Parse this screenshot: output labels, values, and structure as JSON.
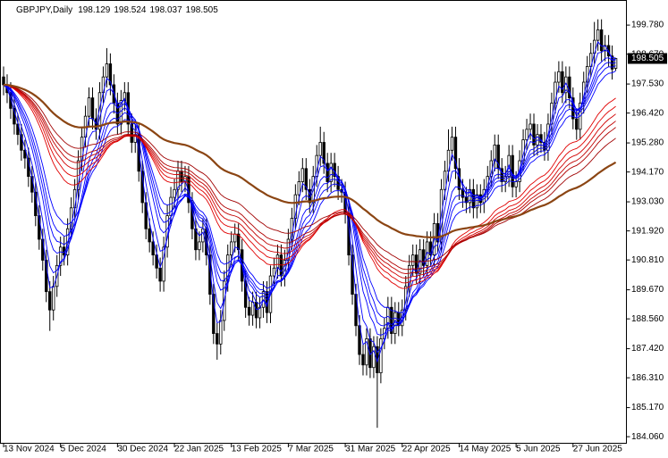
{
  "chart_data": {
    "type": "candlestick",
    "title": "GBPJPY,Daily",
    "categories": [
      "13 Nov 2024",
      null,
      null,
      null,
      null,
      null,
      null,
      null,
      null,
      null,
      null,
      null,
      null,
      null,
      null,
      null,
      "5 Dec 2024",
      null,
      null,
      null,
      null,
      null,
      null,
      null,
      null,
      null,
      null,
      null,
      null,
      null,
      null,
      null,
      "30 Dec 2024",
      null,
      null,
      null,
      null,
      null,
      null,
      null,
      null,
      null,
      null,
      null,
      null,
      null,
      null,
      null,
      "22 Jan 2025",
      null,
      null,
      null,
      null,
      null,
      null,
      null,
      null,
      null,
      null,
      null,
      null,
      null,
      null,
      null,
      "13 Feb 2025",
      null,
      null,
      null,
      null,
      null,
      null,
      null,
      null,
      null,
      null,
      null,
      null,
      null,
      null,
      null,
      "7 Mar 2025",
      null,
      null,
      null,
      null,
      null,
      null,
      null,
      null,
      null,
      null,
      null,
      null,
      null,
      null,
      null,
      "31 Mar 2025",
      null,
      null,
      null,
      null,
      null,
      null,
      null,
      null,
      null,
      null,
      null,
      null,
      null,
      null,
      null,
      "22 Apr 2025",
      null,
      null,
      null,
      null,
      null,
      null,
      null,
      null,
      null,
      null,
      null,
      null,
      null,
      null,
      null,
      "14 May 2025",
      null,
      null,
      null,
      null,
      null,
      null,
      null,
      null,
      null,
      null,
      null,
      null,
      null,
      null,
      null,
      "5 Jun 2025",
      null,
      null,
      null,
      null,
      null,
      null,
      null,
      null,
      null,
      null,
      null,
      null,
      null,
      null,
      null,
      "27 Jun 2025",
      null,
      null,
      null,
      null,
      null,
      null,
      null,
      null,
      null,
      null,
      null,
      null
    ],
    "open": [
      197.8,
      197.5,
      197.2,
      196.6,
      196.0,
      195.6,
      195.0,
      194.7,
      194.0,
      193.4,
      192.5,
      191.6,
      190.8,
      189.6,
      188.9,
      189.8,
      190.6,
      191.3,
      191.0,
      192.0,
      192.8,
      193.5,
      194.6,
      195.5,
      196.3,
      197.0,
      196.2,
      195.8,
      197.2,
      197.8,
      198.3,
      197.5,
      196.8,
      196.0,
      196.9,
      197.2,
      196.0,
      195.3,
      195.6,
      194.2,
      193.0,
      192.0,
      191.5,
      191.0,
      190.5,
      190.0,
      191.3,
      192.5,
      193.2,
      193.5,
      194.2,
      193.8,
      194.0,
      193.0,
      192.0,
      191.2,
      191.5,
      192.0,
      191.0,
      189.5,
      188.0,
      187.6,
      188.5,
      190.0,
      191.0,
      191.5,
      191.8,
      191.2,
      190.0,
      189.0,
      188.7,
      189.2,
      188.6,
      189.0,
      189.6,
      188.8,
      190.2,
      190.5,
      191.0,
      190.2,
      190.8,
      191.6,
      192.4,
      193.3,
      193.8,
      194.3,
      193.5,
      193.0,
      194.0,
      194.8,
      195.3,
      194.5,
      193.8,
      194.5,
      194.0,
      193.5,
      193.4,
      192.6,
      191.0,
      189.5,
      188.3,
      187.2,
      186.8,
      187.8,
      186.7,
      187.5,
      186.5,
      187.8,
      188.2,
      189.0,
      188.0,
      188.8,
      188.3,
      188.9,
      189.8,
      190.6,
      191.0,
      190.3,
      191.2,
      190.6,
      191.5,
      191.0,
      192.2,
      191.5,
      193.5,
      194.2,
      195.0,
      195.5,
      194.3,
      193.5,
      193.2,
      193.0,
      193.5,
      192.8,
      193.3,
      193.0,
      193.5,
      194.0,
      194.6,
      195.2,
      194.3,
      193.8,
      194.0,
      194.8,
      193.6,
      193.8,
      194.6,
      195.4,
      195.8,
      196.0,
      195.2,
      195.6,
      195.3,
      195.0,
      196.0,
      196.8,
      197.6,
      198.0,
      197.2,
      197.8,
      197.0,
      196.2,
      195.8,
      196.8,
      197.6,
      198.2,
      198.7,
      199.2,
      199.6,
      198.8,
      199.0,
      198.6,
      198.129
    ],
    "high": [
      198.2,
      197.9,
      197.6,
      197.0,
      196.4,
      196.0,
      195.4,
      195.1,
      194.4,
      193.8,
      192.9,
      192.0,
      191.2,
      190.0,
      190.2,
      191.0,
      191.7,
      191.7,
      192.4,
      193.2,
      193.9,
      195.0,
      195.9,
      196.7,
      197.4,
      197.4,
      196.6,
      197.6,
      198.2,
      198.9,
      198.7,
      197.9,
      197.2,
      197.3,
      197.6,
      197.6,
      196.4,
      196.0,
      196.0,
      194.6,
      193.4,
      192.4,
      191.9,
      191.4,
      190.9,
      191.7,
      192.9,
      193.6,
      193.9,
      194.6,
      194.6,
      194.4,
      194.4,
      193.4,
      192.4,
      191.9,
      192.4,
      192.4,
      191.4,
      189.9,
      188.4,
      188.9,
      190.4,
      191.4,
      191.9,
      192.2,
      192.2,
      191.6,
      190.4,
      189.4,
      189.6,
      189.6,
      189.4,
      190.0,
      190.0,
      190.6,
      190.9,
      191.4,
      191.4,
      191.2,
      192.0,
      192.8,
      193.7,
      194.2,
      194.7,
      194.7,
      193.9,
      194.4,
      195.2,
      195.9,
      195.7,
      194.9,
      194.9,
      194.9,
      194.4,
      193.9,
      193.8,
      193.0,
      191.4,
      189.9,
      188.7,
      187.6,
      188.2,
      188.2,
      187.9,
      187.9,
      188.2,
      188.6,
      189.4,
      189.4,
      189.2,
      189.2,
      189.3,
      190.2,
      191.0,
      191.4,
      191.4,
      191.6,
      191.6,
      191.9,
      191.9,
      192.6,
      192.6,
      193.9,
      194.6,
      195.8,
      195.9,
      195.9,
      194.7,
      193.9,
      193.6,
      193.9,
      193.9,
      193.7,
      193.7,
      193.9,
      194.4,
      195.0,
      195.6,
      195.6,
      194.7,
      194.4,
      195.2,
      195.2,
      194.2,
      195.0,
      195.8,
      196.2,
      196.4,
      196.4,
      196.0,
      196.0,
      195.7,
      196.4,
      197.2,
      198.0,
      198.4,
      198.4,
      198.2,
      198.2,
      197.4,
      196.6,
      197.2,
      198.0,
      198.6,
      199.1,
      199.9,
      200.0,
      200.0,
      199.4,
      199.4,
      199.0,
      198.524
    ],
    "low": [
      197.1,
      196.8,
      196.2,
      195.6,
      195.2,
      194.6,
      194.3,
      193.6,
      193.0,
      192.1,
      191.2,
      190.4,
      189.2,
      188.1,
      188.5,
      189.4,
      190.2,
      190.6,
      190.6,
      191.6,
      192.4,
      193.1,
      194.2,
      195.1,
      195.9,
      195.8,
      195.4,
      195.4,
      196.8,
      197.4,
      197.1,
      196.4,
      195.6,
      195.6,
      196.5,
      195.6,
      194.9,
      194.9,
      193.8,
      192.6,
      191.6,
      191.1,
      190.6,
      190.1,
      189.6,
      189.6,
      190.9,
      192.1,
      192.8,
      193.1,
      193.4,
      193.4,
      192.6,
      191.6,
      190.8,
      190.8,
      191.1,
      190.6,
      189.1,
      187.6,
      187.0,
      187.2,
      188.1,
      189.6,
      190.6,
      191.1,
      190.8,
      189.6,
      188.6,
      188.3,
      188.3,
      188.2,
      188.2,
      188.6,
      188.4,
      188.4,
      189.8,
      190.1,
      189.8,
      189.8,
      190.4,
      191.2,
      192.0,
      192.9,
      193.4,
      193.1,
      192.6,
      192.6,
      193.6,
      194.4,
      194.1,
      193.4,
      193.4,
      193.6,
      193.1,
      193.0,
      192.2,
      190.6,
      189.1,
      187.9,
      186.8,
      186.4,
      186.4,
      186.3,
      186.3,
      184.4,
      186.1,
      187.4,
      187.8,
      187.6,
      187.6,
      187.9,
      187.9,
      188.5,
      189.4,
      190.2,
      189.9,
      189.9,
      190.2,
      190.2,
      190.6,
      190.6,
      191.1,
      191.1,
      193.1,
      193.8,
      194.6,
      193.9,
      193.1,
      192.8,
      192.6,
      192.6,
      192.4,
      192.4,
      192.6,
      192.6,
      193.1,
      193.6,
      194.2,
      193.9,
      193.4,
      193.4,
      193.6,
      193.2,
      193.2,
      193.4,
      194.2,
      195.0,
      195.4,
      194.8,
      194.8,
      194.9,
      194.6,
      194.6,
      195.6,
      196.4,
      197.2,
      196.8,
      196.8,
      196.6,
      195.8,
      195.4,
      195.4,
      196.4,
      197.2,
      197.8,
      198.3,
      198.8,
      198.4,
      198.4,
      198.2,
      197.7,
      198.037
    ],
    "close": [
      197.5,
      197.2,
      196.6,
      196.0,
      195.6,
      195.0,
      194.7,
      194.0,
      193.4,
      192.5,
      191.6,
      190.8,
      189.6,
      188.9,
      189.8,
      190.6,
      191.3,
      191.0,
      192.0,
      192.8,
      193.5,
      194.6,
      195.5,
      196.3,
      197.0,
      196.2,
      195.8,
      197.2,
      197.8,
      198.3,
      197.5,
      196.8,
      196.0,
      196.9,
      197.2,
      196.0,
      195.3,
      195.6,
      194.2,
      193.0,
      192.0,
      191.5,
      191.0,
      190.5,
      190.0,
      191.3,
      192.5,
      193.2,
      193.5,
      194.2,
      193.8,
      194.0,
      193.0,
      192.0,
      191.2,
      191.5,
      192.0,
      191.0,
      189.5,
      188.0,
      187.6,
      188.5,
      190.0,
      191.0,
      191.5,
      191.8,
      191.2,
      190.0,
      189.0,
      188.7,
      189.2,
      188.6,
      189.0,
      189.6,
      188.8,
      190.2,
      190.5,
      191.0,
      190.2,
      190.8,
      191.6,
      192.4,
      193.3,
      193.8,
      194.3,
      193.5,
      193.0,
      194.0,
      194.8,
      195.3,
      194.5,
      193.8,
      194.5,
      194.0,
      193.5,
      193.4,
      192.6,
      191.0,
      189.5,
      188.3,
      187.2,
      186.8,
      187.8,
      186.7,
      187.5,
      186.5,
      187.8,
      188.2,
      189.0,
      188.0,
      188.8,
      188.3,
      188.9,
      189.8,
      190.6,
      191.0,
      190.3,
      191.2,
      190.6,
      191.5,
      191.0,
      192.2,
      191.5,
      193.5,
      194.2,
      195.0,
      195.5,
      194.3,
      193.5,
      193.2,
      193.0,
      193.5,
      192.8,
      193.3,
      193.0,
      193.5,
      194.0,
      194.6,
      195.2,
      194.3,
      193.8,
      194.0,
      194.8,
      193.6,
      193.8,
      194.6,
      195.4,
      195.8,
      196.0,
      195.2,
      195.6,
      195.3,
      195.0,
      196.0,
      196.8,
      197.6,
      198.0,
      197.2,
      197.8,
      197.0,
      196.2,
      195.8,
      196.8,
      197.6,
      198.2,
      198.7,
      199.2,
      199.6,
      198.8,
      199.0,
      198.6,
      198.1,
      198.505
    ],
    "ylim": [
      183.86,
      200.67
    ],
    "yticks": [
      {
        "value": 184.06,
        "label": "184.060"
      },
      {
        "value": 185.17,
        "label": "185.170"
      },
      {
        "value": 186.31,
        "label": "186.310"
      },
      {
        "value": 187.42,
        "label": "187.420"
      },
      {
        "value": 188.56,
        "label": "188.560"
      },
      {
        "value": 189.67,
        "label": "189.670"
      },
      {
        "value": 190.81,
        "label": "190.810"
      },
      {
        "value": 191.92,
        "label": "191.920"
      },
      {
        "value": 193.03,
        "label": "193.030"
      },
      {
        "value": 194.17,
        "label": "194.170"
      },
      {
        "value": 195.28,
        "label": "195.280"
      },
      {
        "value": 196.42,
        "label": "196.420"
      },
      {
        "value": 197.53,
        "label": "197.530"
      },
      {
        "value": 198.67,
        "label": "198.670"
      },
      {
        "value": 199.78,
        "label": "199.780"
      }
    ],
    "grid": false,
    "moving_averages": [
      {
        "period": 3,
        "color": "#0000ff"
      },
      {
        "period": 5,
        "color": "#0000ff"
      },
      {
        "period": 8,
        "color": "#0000ff"
      },
      {
        "period": 10,
        "color": "#0000ff"
      },
      {
        "period": 12,
        "color": "#0000ff"
      },
      {
        "period": 15,
        "color": "#0000ff"
      },
      {
        "period": 30,
        "color": "#e00000"
      },
      {
        "period": 35,
        "color": "#e00000"
      },
      {
        "period": 40,
        "color": "#d00000"
      },
      {
        "period": 45,
        "color": "#c00000"
      },
      {
        "period": 50,
        "color": "#b00000"
      },
      {
        "period": 60,
        "color": "#a00000"
      },
      {
        "period": 100,
        "color": "#8b4513"
      }
    ]
  }
}
